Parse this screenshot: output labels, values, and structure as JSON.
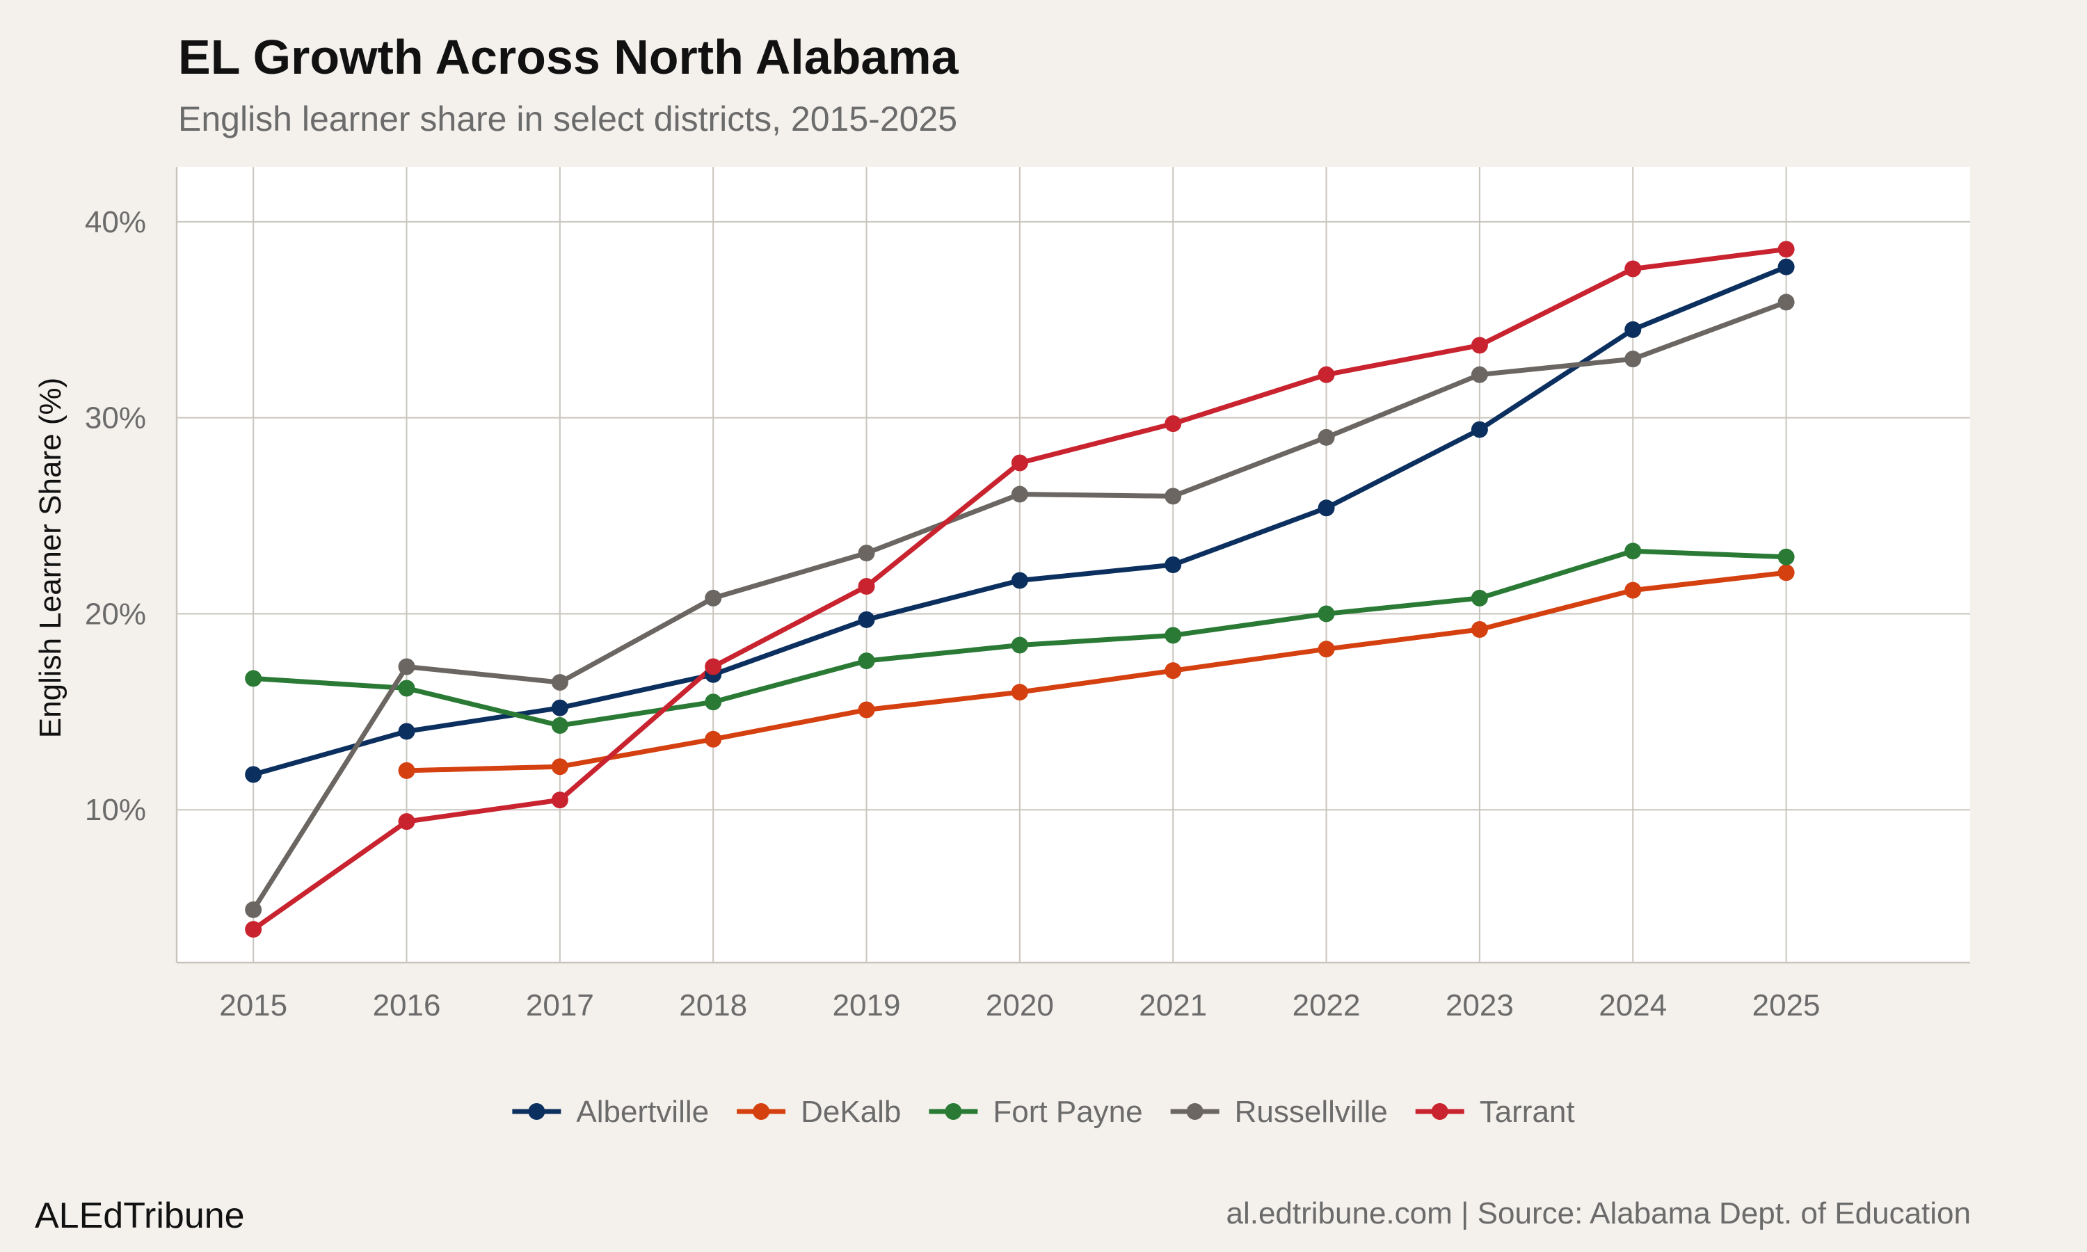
{
  "header": {
    "title": "EL Growth Across North Alabama",
    "subtitle": "English learner share in select districts, 2015-2025"
  },
  "footer": {
    "brand": "ALEdTribune",
    "credit": "al.edtribune.com | Source: Alabama Dept. of Education"
  },
  "colors": {
    "background": "#f4f1ec",
    "panel": "#ffffff",
    "grid": "#c9c5be",
    "axis_text": "#6b6b6b"
  },
  "chart_data": {
    "type": "line",
    "title": "EL Growth Across North Alabama",
    "subtitle": "English learner share in select districts, 2015-2025",
    "xlabel": "",
    "ylabel": "English Learner Share (%)",
    "x": [
      2015,
      2016,
      2017,
      2018,
      2019,
      2020,
      2021,
      2022,
      2023,
      2024,
      2025
    ],
    "x_tick_labels": [
      "2015",
      "2016",
      "2017",
      "2018",
      "2019",
      "2020",
      "2021",
      "2022",
      "2023",
      "2024",
      "2025"
    ],
    "y_ticks": [
      10,
      20,
      30,
      40
    ],
    "y_tick_labels": [
      "10%",
      "20%",
      "30%",
      "40%"
    ],
    "xlim": [
      2014.5,
      2026.2
    ],
    "ylim": [
      2.2,
      42.8
    ],
    "grid": true,
    "legend_position": "bottom",
    "series": [
      {
        "name": "Albertville",
        "color": "#0b2f5e",
        "values": [
          11.8,
          14.0,
          15.2,
          16.9,
          19.7,
          21.7,
          22.5,
          25.4,
          29.4,
          34.5,
          37.7
        ]
      },
      {
        "name": "DeKalb",
        "color": "#d4400f",
        "values": [
          null,
          12.0,
          12.2,
          13.6,
          15.1,
          16.0,
          17.1,
          18.2,
          19.2,
          21.2,
          22.1
        ]
      },
      {
        "name": "Fort Payne",
        "color": "#2a7a35",
        "values": [
          16.7,
          16.2,
          14.3,
          15.5,
          17.6,
          18.4,
          18.9,
          20.0,
          20.8,
          23.2,
          22.9
        ]
      },
      {
        "name": "Russellville",
        "color": "#6b6661",
        "values": [
          4.9,
          17.3,
          16.5,
          20.8,
          23.1,
          26.1,
          26.0,
          29.0,
          32.2,
          33.0,
          35.9
        ]
      },
      {
        "name": "Tarrant",
        "color": "#c8232e",
        "values": [
          3.9,
          9.4,
          10.5,
          17.3,
          21.4,
          27.7,
          29.7,
          32.2,
          33.7,
          37.6,
          38.6
        ]
      }
    ]
  }
}
